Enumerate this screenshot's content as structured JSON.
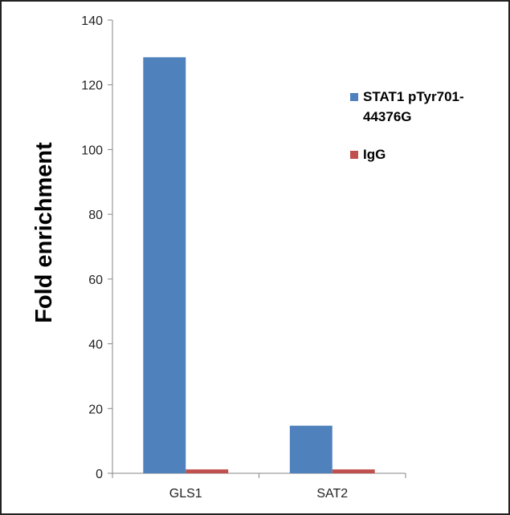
{
  "chart_data": {
    "type": "bar",
    "title": "",
    "xlabel": "",
    "ylabel": "Fold enrichment",
    "categories": [
      "GLS1",
      "SAT2"
    ],
    "series": [
      {
        "name": "STAT1 pTyr701-44376G",
        "legend_lines": [
          "STAT1 pTyr701-",
          "44376G"
        ],
        "color": "#4f81bd",
        "values": [
          128.5,
          14.7
        ]
      },
      {
        "name": "IgG",
        "legend_lines": [
          "IgG"
        ],
        "color": "#c0504d",
        "values": [
          1.2,
          1.2
        ]
      }
    ],
    "ylim": [
      0,
      140
    ],
    "yticks": [
      0,
      20,
      40,
      60,
      80,
      100,
      120,
      140
    ],
    "grid": false,
    "legend_position": "right"
  }
}
